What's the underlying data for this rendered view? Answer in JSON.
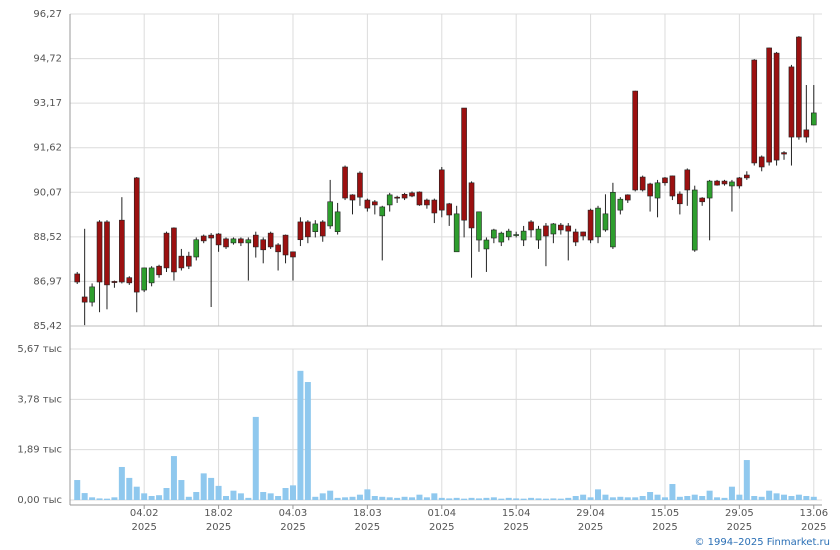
{
  "chart_data": {
    "type": "candlestick",
    "categories": [
      null,
      null,
      null,
      null,
      null,
      null,
      null,
      null,
      null,
      "04.02\n2025",
      null,
      null,
      null,
      null,
      null,
      null,
      null,
      null,
      null,
      "18.02\n2025",
      null,
      null,
      null,
      null,
      null,
      null,
      null,
      null,
      null,
      "04.03\n2025",
      null,
      null,
      null,
      null,
      null,
      null,
      null,
      null,
      null,
      "18.03\n2025",
      null,
      null,
      null,
      null,
      null,
      null,
      null,
      null,
      null,
      "01.04\n2025",
      null,
      null,
      null,
      null,
      null,
      null,
      null,
      null,
      null,
      "15.04\n2025",
      null,
      null,
      null,
      null,
      null,
      null,
      null,
      null,
      null,
      "29.04\n2025",
      null,
      null,
      null,
      null,
      null,
      null,
      null,
      null,
      null,
      "15.05\n2025",
      null,
      null,
      null,
      null,
      null,
      null,
      null,
      null,
      null,
      "29.05\n2025",
      null,
      null,
      null,
      null,
      null,
      null,
      null,
      null,
      null,
      "13.06\n2025"
    ],
    "open": [
      87.23,
      86.43,
      86.25,
      89.04,
      89.04,
      86.97,
      89.1,
      87.1,
      90.57,
      86.67,
      86.92,
      87.5,
      88.65,
      88.83,
      87.85,
      87.85,
      87.82,
      88.55,
      88.58,
      88.62,
      88.45,
      88.31,
      88.45,
      88.31,
      88.58,
      88.42,
      88.65,
      88.24,
      88.58,
      88.0,
      89.04,
      89.04,
      88.7,
      89.04,
      88.9,
      88.7,
      90.95,
      89.98,
      90.74,
      89.8,
      89.74,
      89.25,
      89.63,
      89.9,
      90.0,
      90.05,
      90.08,
      89.8,
      89.8,
      90.85,
      89.67,
      88.0,
      93.0,
      90.4,
      88.41,
      88.1,
      88.48,
      88.34,
      88.52,
      88.58,
      88.41,
      89.04,
      88.41,
      88.9,
      88.62,
      88.93,
      88.9,
      88.69,
      88.69,
      89.45,
      88.52,
      88.76,
      88.17,
      89.45,
      89.98,
      93.59,
      90.6,
      90.36,
      89.87,
      90.57,
      90.64,
      90.01,
      90.85,
      88.06,
      89.87,
      89.87,
      90.46,
      90.46,
      90.29,
      90.57,
      90.67,
      94.67,
      91.3,
      95.09,
      94.91,
      91.45,
      94.43,
      95.47,
      92.24,
      92.41
    ],
    "high": [
      87.3,
      88.8,
      86.9,
      89.1,
      89.1,
      87.0,
      89.9,
      87.15,
      90.6,
      87.45,
      87.5,
      87.55,
      88.7,
      88.85,
      88.1,
      88.0,
      88.5,
      88.6,
      88.65,
      88.65,
      88.5,
      88.5,
      88.5,
      88.5,
      88.7,
      88.5,
      88.7,
      88.3,
      88.6,
      88.0,
      89.2,
      89.1,
      89.1,
      89.1,
      90.5,
      89.7,
      91.0,
      90.0,
      90.8,
      89.85,
      89.8,
      89.6,
      90.05,
      89.95,
      90.05,
      90.1,
      90.1,
      89.85,
      89.85,
      90.95,
      89.7,
      89.6,
      93.0,
      90.45,
      89.4,
      88.5,
      88.8,
      88.7,
      88.8,
      88.7,
      88.9,
      89.1,
      88.9,
      89.0,
      89.0,
      89.0,
      89.0,
      88.8,
      88.7,
      89.5,
      89.6,
      90.0,
      90.4,
      89.9,
      90.0,
      93.6,
      90.65,
      90.4,
      90.5,
      90.6,
      90.65,
      90.1,
      90.9,
      90.3,
      89.9,
      90.5,
      90.5,
      90.5,
      90.5,
      90.6,
      90.8,
      94.7,
      91.35,
      95.1,
      94.95,
      91.5,
      94.5,
      95.5,
      93.8,
      93.8
    ],
    "low": [
      86.88,
      85.45,
      86.1,
      85.9,
      86.0,
      86.75,
      86.9,
      86.85,
      85.9,
      86.6,
      86.8,
      87.1,
      87.3,
      87.0,
      87.35,
      87.4,
      87.7,
      88.3,
      86.08,
      88.0,
      88.1,
      88.25,
      88.2,
      87.0,
      87.8,
      87.6,
      88.1,
      87.35,
      87.6,
      87.0,
      88.2,
      88.3,
      88.5,
      88.35,
      88.8,
      88.6,
      89.8,
      89.3,
      89.6,
      89.4,
      89.3,
      87.7,
      89.4,
      89.7,
      89.8,
      89.9,
      89.6,
      89.5,
      89.0,
      89.2,
      88.9,
      88.0,
      88.5,
      87.1,
      88.0,
      87.3,
      88.3,
      88.2,
      88.4,
      88.5,
      88.2,
      88.5,
      88.1,
      87.5,
      88.3,
      88.6,
      87.7,
      88.2,
      88.4,
      88.3,
      88.3,
      88.7,
      88.1,
      89.3,
      89.7,
      90.1,
      90.1,
      89.4,
      89.2,
      90.3,
      89.8,
      89.3,
      89.6,
      88.0,
      89.6,
      88.4,
      90.3,
      90.3,
      89.4,
      90.2,
      90.5,
      91.0,
      90.8,
      91.0,
      91.0,
      91.2,
      91.0,
      91.9,
      91.8,
      92.4
    ],
    "close": [
      86.95,
      86.25,
      86.78,
      86.95,
      86.85,
      86.93,
      86.95,
      86.92,
      86.6,
      87.44,
      87.44,
      87.2,
      87.44,
      87.3,
      87.44,
      87.5,
      88.42,
      88.38,
      88.48,
      88.24,
      88.17,
      88.45,
      88.31,
      88.42,
      88.17,
      88.07,
      88.17,
      88.0,
      87.89,
      87.82,
      88.42,
      88.52,
      88.97,
      88.55,
      89.74,
      89.39,
      89.87,
      89.8,
      89.9,
      89.52,
      89.63,
      89.56,
      89.98,
      89.87,
      89.87,
      89.94,
      89.63,
      89.63,
      89.35,
      89.45,
      89.28,
      89.32,
      89.1,
      88.83,
      89.39,
      88.41,
      88.76,
      88.65,
      88.72,
      88.6,
      88.72,
      88.76,
      88.79,
      88.55,
      88.97,
      88.76,
      88.72,
      88.34,
      88.55,
      88.41,
      89.52,
      89.32,
      90.07,
      89.83,
      89.8,
      90.15,
      90.15,
      89.94,
      90.4,
      90.4,
      89.94,
      89.67,
      90.15,
      90.15,
      89.74,
      90.46,
      90.32,
      90.36,
      90.43,
      90.29,
      90.57,
      91.09,
      90.95,
      91.12,
      91.19,
      91.4,
      91.99,
      91.99,
      91.99,
      92.83
    ],
    "volume": [
      0.75,
      0.26,
      0.1,
      0.06,
      0.05,
      0.1,
      1.24,
      0.83,
      0.5,
      0.25,
      0.15,
      0.18,
      0.45,
      1.65,
      0.75,
      0.12,
      0.3,
      1.0,
      0.83,
      0.53,
      0.15,
      0.35,
      0.25,
      0.08,
      3.12,
      0.3,
      0.25,
      0.15,
      0.45,
      0.55,
      4.85,
      4.43,
      0.12,
      0.25,
      0.35,
      0.08,
      0.1,
      0.12,
      0.2,
      0.4,
      0.15,
      0.12,
      0.1,
      0.08,
      0.12,
      0.1,
      0.2,
      0.1,
      0.25,
      0.08,
      0.06,
      0.08,
      0.05,
      0.08,
      0.06,
      0.08,
      0.1,
      0.05,
      0.08,
      0.06,
      0.05,
      0.08,
      0.06,
      0.05,
      0.06,
      0.05,
      0.08,
      0.15,
      0.2,
      0.1,
      0.4,
      0.2,
      0.1,
      0.12,
      0.1,
      0.1,
      0.15,
      0.3,
      0.2,
      0.1,
      0.6,
      0.12,
      0.15,
      0.2,
      0.15,
      0.35,
      0.1,
      0.08,
      0.5,
      0.2,
      1.5,
      0.15,
      0.12,
      0.35,
      0.25,
      0.2,
      0.15,
      0.2,
      0.15,
      0.12
    ],
    "ylim": [
      85.42,
      96.27
    ],
    "yticks": [
      {
        "value": 85.42,
        "label": "85,42"
      },
      {
        "value": 86.97,
        "label": "86,97"
      },
      {
        "value": 88.52,
        "label": "88,52"
      },
      {
        "value": 90.07,
        "label": "90,07"
      },
      {
        "value": 91.62,
        "label": "91,62"
      },
      {
        "value": 93.17,
        "label": "93,17"
      },
      {
        "value": 94.72,
        "label": "94,72"
      },
      {
        "value": 96.27,
        "label": "96,27"
      }
    ],
    "volume_ylim": [
      0,
      5.67
    ],
    "volume_yticks": [
      {
        "value": 0,
        "label": "0,00 тыс"
      },
      {
        "value": 1.89,
        "label": "1,89 тыс"
      },
      {
        "value": 3.78,
        "label": "3,78 тыс"
      },
      {
        "value": 5.67,
        "label": "5,67 тыс"
      }
    ],
    "up_color": "#2e9e2e",
    "down_color": "#9b1010",
    "volume_color": "#8fc8ee",
    "grid": true
  },
  "footer": "© 1994–2025 Finmarket.ru"
}
